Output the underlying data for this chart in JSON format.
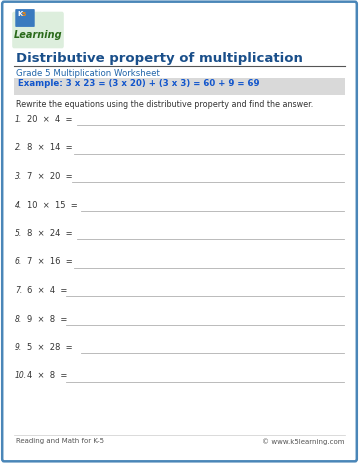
{
  "title": "Distributive property of multiplication",
  "subtitle": "Grade 5 Multiplication Worksheet",
  "example_text": "Example: 3 x 23 = (3 x 20) + (3 x 3) = 60 + 9 = 69",
  "instruction": "Rewrite the equations using the distributive property and find the answer.",
  "problems": [
    {
      "num": "1.",
      "eq": "20  ×  4  ="
    },
    {
      "num": "2.",
      "eq": "8  ×  14  ="
    },
    {
      "num": "3.",
      "eq": "7  ×  20  ="
    },
    {
      "num": "4.",
      "eq": "10  ×  15  ="
    },
    {
      "num": "5.",
      "eq": "8  ×  24  ="
    },
    {
      "num": "6.",
      "eq": "7  ×  16  ="
    },
    {
      "num": "7.",
      "eq": "6  ×  4  ="
    },
    {
      "num": "8.",
      "eq": "9  ×  8  ="
    },
    {
      "num": "9.",
      "eq": "5  ×  28  ="
    },
    {
      "num": "10.",
      "eq": "4  ×  8  ="
    }
  ],
  "line_starts": [
    0.215,
    0.205,
    0.2,
    0.225,
    0.215,
    0.205,
    0.185,
    0.185,
    0.225,
    0.185
  ],
  "footer_left": "Reading and Math for K-5",
  "footer_right": "© www.k5learning.com",
  "title_color": "#1a4f8a",
  "subtitle_color": "#2266aa",
  "example_color": "#1155cc",
  "example_bg": "#d9d9d9",
  "border_color": "#3b7cb5",
  "line_color": "#b0b0b0",
  "text_color": "#333333",
  "footer_color": "#555555",
  "bg_color": "#ffffff",
  "page_border_color": "#4a86b8"
}
